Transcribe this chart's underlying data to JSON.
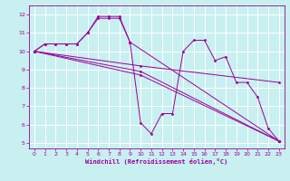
{
  "background_color": "#c8f0f0",
  "line_color": "#990099",
  "grid_color": "#ffffff",
  "xlabel": "Windchill (Refroidissement éolien,°C)",
  "ylabel_ticks": [
    5,
    6,
    7,
    8,
    9,
    10,
    11,
    12
  ],
  "xlim": [
    -0.5,
    23.5
  ],
  "ylim": [
    4.7,
    12.5
  ],
  "xticks": [
    0,
    1,
    2,
    3,
    4,
    5,
    6,
    7,
    8,
    9,
    10,
    11,
    12,
    13,
    14,
    15,
    16,
    17,
    18,
    19,
    20,
    21,
    22,
    23
  ],
  "series": [
    {
      "x": [
        0,
        1,
        2,
        3,
        4,
        5,
        6,
        7,
        8,
        9,
        10,
        11,
        12,
        13,
        14,
        15,
        16,
        17,
        18,
        19,
        20,
        21,
        22,
        23
      ],
      "y": [
        10.0,
        10.4,
        10.4,
        10.4,
        10.4,
        11.0,
        11.8,
        11.8,
        11.8,
        10.5,
        6.1,
        5.5,
        6.6,
        6.6,
        10.0,
        10.6,
        10.6,
        9.5,
        9.7,
        8.3,
        8.3,
        7.5,
        5.8,
        5.1
      ]
    },
    {
      "x": [
        0,
        1,
        2,
        3,
        4,
        5,
        6,
        7,
        8,
        9,
        23
      ],
      "y": [
        10.0,
        10.4,
        10.4,
        10.4,
        10.4,
        11.0,
        11.9,
        11.9,
        11.9,
        10.5,
        5.1
      ]
    },
    {
      "x": [
        0,
        10,
        23
      ],
      "y": [
        10.0,
        9.2,
        8.3
      ]
    },
    {
      "x": [
        0,
        10,
        23
      ],
      "y": [
        10.0,
        8.9,
        5.1
      ]
    },
    {
      "x": [
        0,
        10,
        23
      ],
      "y": [
        10.0,
        8.7,
        5.1
      ]
    }
  ]
}
